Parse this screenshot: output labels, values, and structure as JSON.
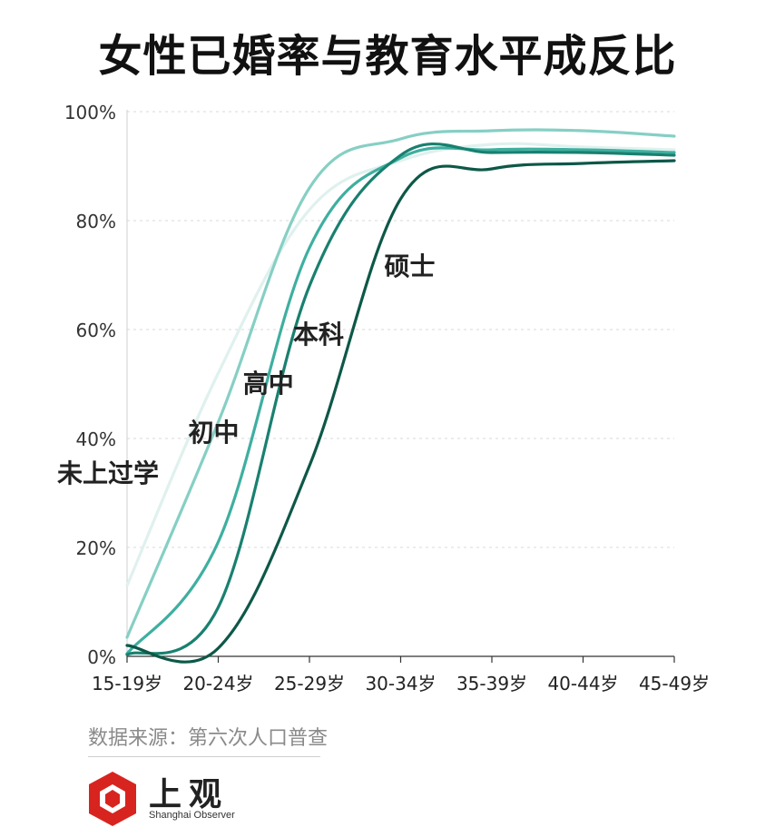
{
  "title": "女性已婚率与教育水平成反比",
  "source": "数据来源：第六次人口普查",
  "logo": {
    "name_cn": "上观",
    "name_en": "Shanghai Observer"
  },
  "chart_data": {
    "type": "line",
    "title": "女性已婚率与教育水平成反比",
    "xlabel": "",
    "ylabel": "",
    "x": [
      "15-19岁",
      "20-24岁",
      "25-29岁",
      "30-34岁",
      "35-39岁",
      "40-44岁",
      "45-49岁"
    ],
    "y_ticks": [
      "0%",
      "20%",
      "40%",
      "60%",
      "80%",
      "100%"
    ],
    "ylim": [
      0,
      100
    ],
    "grid": true,
    "legend": "inline labels",
    "series": [
      {
        "name": "未上过学",
        "color": "#dff1ee",
        "values": [
          13,
          52,
          82,
          91,
          94,
          93.5,
          93
        ]
      },
      {
        "name": "初中",
        "color": "#86cfc4",
        "values": [
          3.5,
          43,
          86,
          95,
          96.5,
          96.5,
          95.5
        ]
      },
      {
        "name": "高中",
        "color": "#3eafa0",
        "values": [
          0.5,
          21,
          75,
          91.5,
          93,
          93,
          92.5
        ]
      },
      {
        "name": "本科",
        "color": "#19806f",
        "values": [
          0.3,
          9,
          68,
          92,
          92.5,
          92.5,
          92
        ]
      },
      {
        "name": "硕士",
        "color": "#0d5848",
        "values": [
          2,
          1.5,
          35,
          84,
          89.5,
          90.5,
          91
        ]
      }
    ]
  }
}
